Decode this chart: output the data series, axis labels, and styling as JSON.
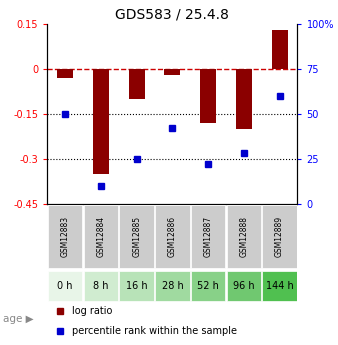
{
  "title": "GDS583 / 25.4.8",
  "samples": [
    "GSM12883",
    "GSM12884",
    "GSM12885",
    "GSM12886",
    "GSM12887",
    "GSM12888",
    "GSM12889"
  ],
  "ages": [
    "0 h",
    "8 h",
    "16 h",
    "28 h",
    "52 h",
    "96 h",
    "144 h"
  ],
  "log_ratio": [
    -0.03,
    -0.35,
    -0.1,
    -0.02,
    -0.18,
    -0.2,
    0.13
  ],
  "percentile_rank": [
    50,
    10,
    25,
    42,
    22,
    28,
    60
  ],
  "ylim_left": [
    -0.45,
    0.15
  ],
  "ylim_right": [
    0,
    100
  ],
  "yticks_left": [
    0.15,
    0,
    -0.15,
    -0.3,
    -0.45
  ],
  "ytick_labels_left": [
    "0.15",
    "0",
    "-0.15",
    "-0.3",
    "-0.45"
  ],
  "yticks_right": [
    100,
    75,
    50,
    25,
    0
  ],
  "ytick_labels_right": [
    "100%",
    "75",
    "50",
    "25",
    "0"
  ],
  "bar_color": "#8B0000",
  "dot_color": "#0000CD",
  "age_colors": [
    "#e8f5e8",
    "#d0ecd0",
    "#b8e3b8",
    "#a0daa0",
    "#88d188",
    "#70c870",
    "#50c050"
  ],
  "gsm_bg_color": "#cccccc",
  "dashed_line_color": "#cc0000",
  "dotted_line_color": "#000000",
  "legend_red": "log ratio",
  "legend_blue": "percentile rank within the sample"
}
